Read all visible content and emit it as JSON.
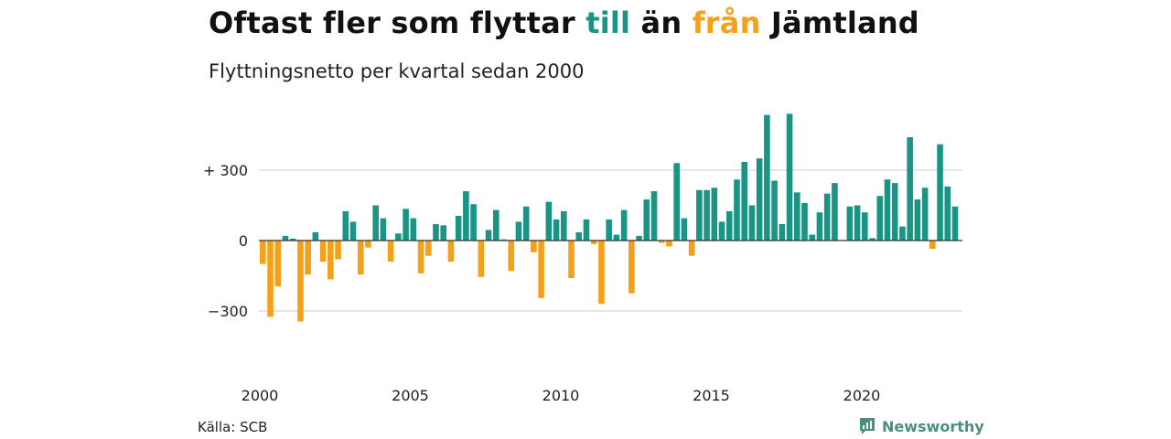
{
  "title": {
    "part1": "Oftast fler som flyttar ",
    "word_in": "till",
    "part2": " än ",
    "word_out": "från",
    "part3": " Jämtland"
  },
  "subtitle": "Flyttningsnetto per kvartal sedan 2000",
  "source": "Källa: SCB",
  "brand": "Newsworthy",
  "colors": {
    "positive": "#1a9585",
    "negative": "#f5a01a",
    "grid": "#dddddd",
    "baseline": "#333333"
  },
  "chart_data": {
    "type": "bar",
    "title": "Oftast fler som flyttar till än från Jämtland",
    "subtitle": "Flyttningsnetto per kvartal sedan 2000",
    "start_year": 2000,
    "periods_per_year": 4,
    "ylim": [
      -450,
      550
    ],
    "yticks": [
      {
        "value": 300,
        "label": "+ 300"
      },
      {
        "value": 0,
        "label": "0"
      },
      {
        "value": -300,
        "label": "−300"
      }
    ],
    "xticks": [
      "2000",
      "2005",
      "2010",
      "2015",
      "2020"
    ],
    "grid": true,
    "values": [
      -100,
      -325,
      -195,
      20,
      8,
      -345,
      -145,
      35,
      -90,
      -165,
      -80,
      125,
      80,
      -145,
      -30,
      150,
      95,
      -90,
      30,
      135,
      95,
      -140,
      -65,
      70,
      65,
      -90,
      105,
      210,
      155,
      -155,
      45,
      130,
      5,
      -130,
      80,
      145,
      -50,
      -245,
      165,
      90,
      125,
      -160,
      35,
      90,
      -15,
      -270,
      90,
      25,
      130,
      -225,
      20,
      175,
      210,
      -10,
      -25,
      330,
      95,
      -65,
      215,
      215,
      225,
      80,
      125,
      260,
      335,
      150,
      350,
      535,
      255,
      70,
      540,
      205,
      160,
      25,
      120,
      200,
      245,
      0,
      145,
      150,
      120,
      10,
      190,
      260,
      245,
      60,
      440,
      175,
      225,
      -35,
      410,
      230,
      145
    ]
  }
}
